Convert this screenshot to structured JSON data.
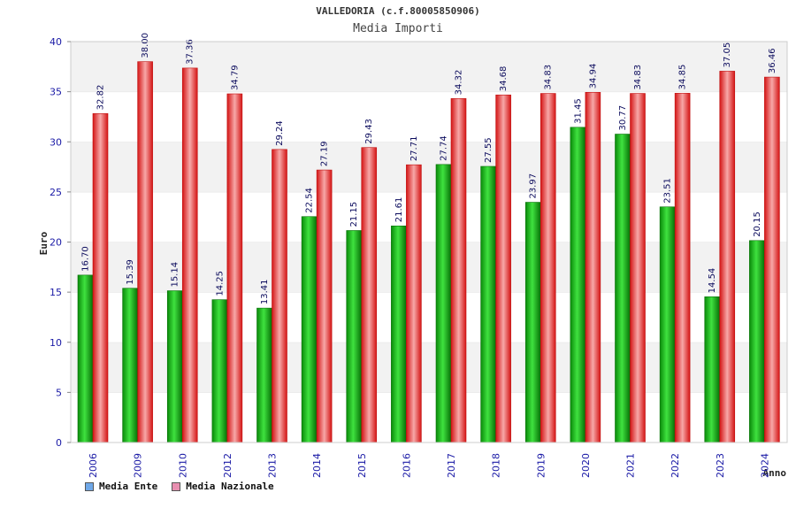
{
  "header": {
    "title": "VALLEDORIA (c.f.80005850906)",
    "subtitle": "Media Importi"
  },
  "legend": {
    "items": [
      {
        "label": "Media Ente",
        "color": "#6fa8e8"
      },
      {
        "label": "Media Nazionale",
        "color": "#e88fb0"
      }
    ]
  },
  "colors": {
    "ente": "#11b811",
    "nazionale": "#ee2a2a",
    "band": "#f2f2f2",
    "tick_text": "#1a1aa6"
  },
  "chart_data": {
    "type": "bar",
    "title": "Media Importi",
    "xlabel": "Anno",
    "ylabel": "Euro",
    "ylim": [
      0,
      40
    ],
    "yticks": [
      0,
      5,
      10,
      15,
      20,
      25,
      30,
      35,
      40
    ],
    "categories": [
      "2006",
      "2009",
      "2010",
      "2012",
      "2013",
      "2014",
      "2015",
      "2016",
      "2017",
      "2018",
      "2019",
      "2020",
      "2021",
      "2022",
      "2023",
      "2024"
    ],
    "series": [
      {
        "name": "Media Ente",
        "values": [
          16.7,
          15.39,
          15.14,
          14.25,
          13.41,
          22.54,
          21.15,
          21.61,
          27.74,
          27.55,
          23.97,
          31.45,
          30.77,
          23.51,
          14.54,
          20.15
        ],
        "labels": [
          "16.70",
          "15.39",
          "15.14",
          "14.25",
          "13.41",
          "22.54",
          "21.15",
          "21.61",
          "27.74",
          "27.55",
          "23.97",
          "31.45",
          "30.77",
          "23.51",
          "14.54",
          "20.15"
        ]
      },
      {
        "name": "Media Nazionale",
        "values": [
          32.82,
          38.0,
          37.36,
          34.79,
          29.24,
          27.19,
          29.43,
          27.71,
          34.32,
          34.68,
          34.83,
          34.94,
          34.83,
          34.85,
          37.05,
          36.46
        ],
        "labels": [
          "32.82",
          "38.00",
          "37.36",
          "34.79",
          "29.24",
          "27.19",
          "29.43",
          "27.71",
          "34.32",
          "34.68",
          "34.83",
          "34.94",
          "34.83",
          "34.85",
          "37.05",
          "36.46"
        ]
      }
    ],
    "grid": true,
    "legend_position": "bottom-left"
  }
}
